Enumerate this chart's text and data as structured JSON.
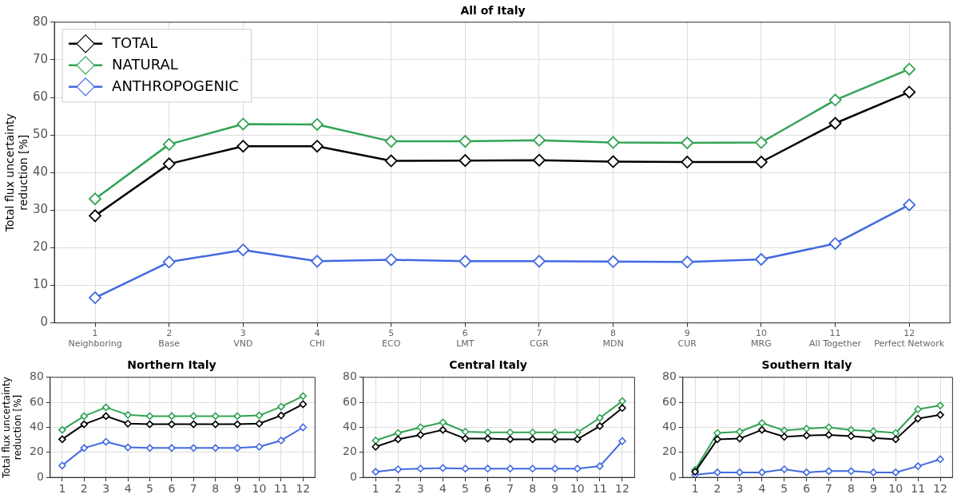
{
  "chart_data": [
    {
      "type": "line",
      "title": "All of Italy",
      "ylabel": "Total flux uncertainty reduction [%]",
      "x": [
        1,
        2,
        3,
        4,
        5,
        6,
        7,
        8,
        9,
        10,
        11,
        12
      ],
      "xlim": [
        0.45,
        12.55
      ],
      "xticks": [
        {
          "value": 1,
          "label": "1\nNeighboring"
        },
        {
          "value": 2,
          "label": "2\nBase"
        },
        {
          "value": 3,
          "label": "3\nVND"
        },
        {
          "value": 4,
          "label": "4\nCHI"
        },
        {
          "value": 5,
          "label": "5\nECO"
        },
        {
          "value": 6,
          "label": "6\nLMT"
        },
        {
          "value": 7,
          "label": "7\nCGR"
        },
        {
          "value": 8,
          "label": "8\nMDN"
        },
        {
          "value": 9,
          "label": "9\nCUR"
        },
        {
          "value": 10,
          "label": "10\nMRG"
        },
        {
          "value": 11,
          "label": "11\nAll Together"
        },
        {
          "value": 12,
          "label": "12\nPerfect Network"
        }
      ],
      "ylim": [
        0,
        80
      ],
      "yticks": [
        0,
        10,
        20,
        30,
        40,
        50,
        60,
        70,
        80
      ],
      "grid": true,
      "legend": "top left",
      "marker": "diamond",
      "line_style": "solid",
      "series": [
        {
          "name": "TOTAL",
          "color": "#000000",
          "values": [
            28.5,
            42.3,
            47.0,
            47.0,
            43.1,
            43.2,
            43.3,
            42.9,
            42.8,
            42.8,
            53.1,
            61.4
          ]
        },
        {
          "name": "NATURAL",
          "color": "#31a354",
          "values": [
            33.0,
            47.5,
            52.9,
            52.8,
            48.3,
            48.3,
            48.6,
            48.0,
            47.9,
            48.0,
            59.3,
            67.5
          ]
        },
        {
          "name": "ANTHROPOGENIC",
          "color": "#4169e1",
          "values": [
            6.7,
            16.2,
            19.4,
            16.4,
            16.8,
            16.4,
            16.4,
            16.3,
            16.2,
            16.9,
            21.1,
            31.4
          ]
        }
      ]
    },
    {
      "type": "line",
      "title": "Northern Italy",
      "ylabel": "Total flux uncertainty reduction [%]",
      "x": [
        1,
        2,
        3,
        4,
        5,
        6,
        7,
        8,
        9,
        10,
        11,
        12
      ],
      "xlim": [
        0.45,
        12.55
      ],
      "xticks": [
        1,
        2,
        3,
        4,
        5,
        6,
        7,
        8,
        9,
        10,
        11,
        12
      ],
      "ylim": [
        0,
        80
      ],
      "yticks": [
        0,
        20,
        40,
        60,
        80
      ],
      "grid": true,
      "marker": "diamond",
      "line_style": "solid",
      "series": [
        {
          "color": "#000000",
          "values": [
            30.5,
            42.5,
            49,
            43,
            42.5,
            42.5,
            42.5,
            42.5,
            42.5,
            43,
            49.5,
            58.5
          ]
        },
        {
          "color": "#31a354",
          "values": [
            38,
            49,
            56,
            50,
            49,
            49,
            49,
            49,
            49,
            49.5,
            56.5,
            65
          ]
        },
        {
          "color": "#4169e1",
          "values": [
            9.5,
            23.5,
            28.5,
            24,
            23.5,
            23.5,
            23.5,
            23.5,
            23.5,
            24.5,
            29.5,
            40
          ]
        }
      ]
    },
    {
      "type": "line",
      "title": "Central Italy",
      "x": [
        1,
        2,
        3,
        4,
        5,
        6,
        7,
        8,
        9,
        10,
        11,
        12
      ],
      "xlim": [
        0.45,
        12.55
      ],
      "xticks": [
        1,
        2,
        3,
        4,
        5,
        6,
        7,
        8,
        9,
        10,
        11,
        12
      ],
      "ylim": [
        0,
        80
      ],
      "yticks": [
        0,
        20,
        40,
        60,
        80
      ],
      "grid": true,
      "marker": "diamond",
      "line_style": "solid",
      "series": [
        {
          "color": "#000000",
          "values": [
            24.5,
            30.5,
            34,
            38,
            31,
            31,
            30.5,
            30.5,
            30.5,
            30.5,
            41,
            55.5
          ]
        },
        {
          "color": "#31a354",
          "values": [
            29.5,
            35.5,
            40,
            44,
            36.5,
            36,
            36,
            36,
            36,
            36,
            47.5,
            61
          ]
        },
        {
          "color": "#4169e1",
          "values": [
            4.5,
            6.5,
            7,
            7.5,
            7,
            7,
            7,
            7,
            7,
            7,
            9,
            29
          ]
        }
      ]
    },
    {
      "type": "line",
      "title": "Southern Italy",
      "x": [
        1,
        2,
        3,
        4,
        5,
        6,
        7,
        8,
        9,
        10,
        11,
        12
      ],
      "xlim": [
        0.45,
        12.55
      ],
      "xticks": [
        1,
        2,
        3,
        4,
        5,
        6,
        7,
        8,
        9,
        10,
        11,
        12
      ],
      "ylim": [
        0,
        80
      ],
      "yticks": [
        0,
        20,
        40,
        60,
        80
      ],
      "grid": true,
      "marker": "diamond",
      "line_style": "solid",
      "series": [
        {
          "color": "#000000",
          "values": [
            4.5,
            30.5,
            31,
            38,
            32.5,
            33.5,
            34,
            33,
            31.5,
            30.5,
            47,
            50
          ]
        },
        {
          "color": "#31a354",
          "values": [
            6,
            35.5,
            36.5,
            43.5,
            37.5,
            39,
            40,
            38,
            37,
            35.5,
            54.5,
            57.5
          ]
        },
        {
          "color": "#4169e1",
          "values": [
            2,
            4,
            4,
            4,
            6.5,
            4,
            5,
            5,
            4,
            4,
            9,
            14.5
          ]
        }
      ]
    }
  ]
}
